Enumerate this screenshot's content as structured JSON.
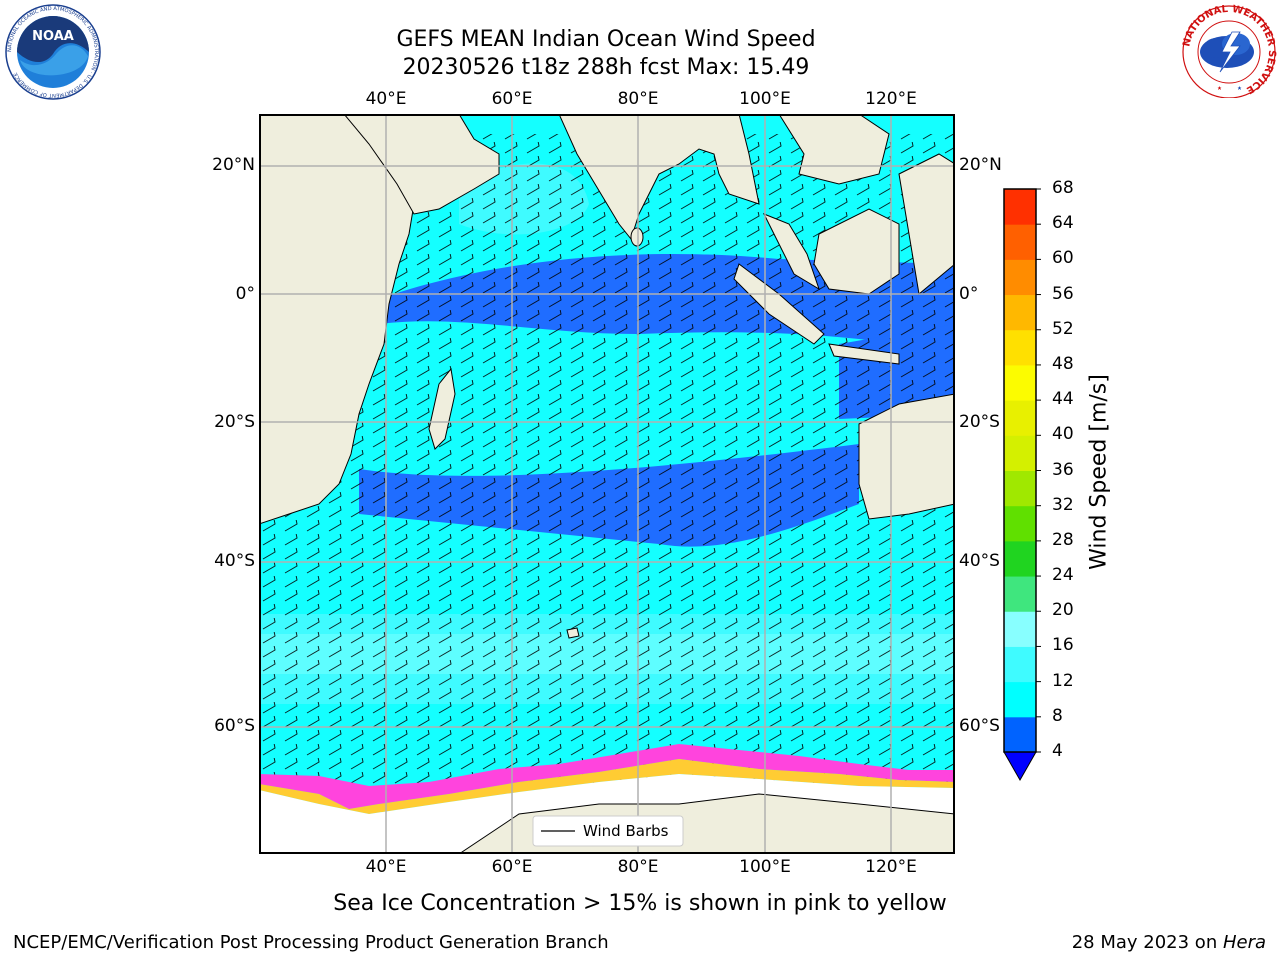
{
  "title": {
    "line1": "GEFS MEAN Indian Ocean Wind Speed",
    "line2": "20230526 t18z 288h fcst   Max: 15.49"
  },
  "map": {
    "lon_ticks": [
      "40°E",
      "60°E",
      "80°E",
      "100°E",
      "120°E"
    ],
    "lat_ticks": [
      "20°N",
      "0°",
      "20°S",
      "40°S",
      "60°S"
    ],
    "legend_label": "Wind Barbs"
  },
  "colorbar": {
    "label": "Wind Speed [m/s]",
    "tick_labels": [
      "4",
      "8",
      "12",
      "16",
      "20",
      "24",
      "28",
      "32",
      "36",
      "40",
      "44",
      "48",
      "52",
      "56",
      "60",
      "64",
      "68"
    ],
    "colors": [
      "#0063ff",
      "#00ffff",
      "#3ffbff",
      "#88ffff",
      "#3fe67e",
      "#20d420",
      "#60e000",
      "#a0e800",
      "#d4f000",
      "#e8f000",
      "#fcfc00",
      "#ffe000",
      "#ffb800",
      "#ff8c00",
      "#ff6000",
      "#ff3000"
    ],
    "underflow_color": "#0000ff"
  },
  "colors": {
    "land": "#efeedd",
    "ocean_low": "#1f6dff",
    "ocean_mid": "#14ffff",
    "ocean_high": "#66ffff",
    "sea_ice_pink": "#ff44dd",
    "sea_ice_yellow": "#ffcc33"
  },
  "caption": "Sea Ice Concentration > 15% is shown in pink to yellow",
  "footer": {
    "left": "NCEP/EMC/Verification Post Processing Product Generation Branch",
    "date": "28 May 2023 on ",
    "machine": "Hera"
  },
  "logos": {
    "noaa_text": "NOAA",
    "noaa_ring_text": "NATIONAL OCEANIC AND ATMOSPHERIC ADMINISTRATION · U.S. DEPARTMENT OF COMMERCE",
    "nws_ring_text": "NATIONAL WEATHER SERVICE"
  }
}
